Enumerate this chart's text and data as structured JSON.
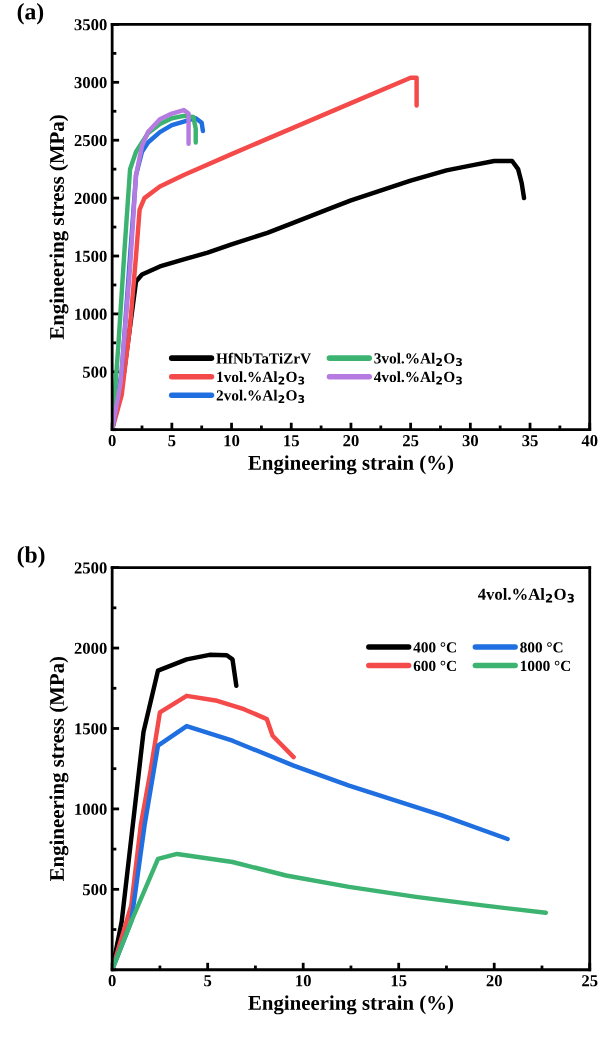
{
  "chart_data": [
    {
      "type": "line",
      "title": "(a)",
      "xlabel": "Engineering strain (%)",
      "ylabel": "Engineering stress (MPa)",
      "xlim": [
        0,
        40
      ],
      "ylim": [
        0,
        3500
      ],
      "xticks": [
        0,
        5,
        10,
        15,
        20,
        25,
        30,
        35,
        40
      ],
      "yticks": [
        500,
        1000,
        1500,
        2000,
        2500,
        3000,
        3500
      ],
      "legend": "bottom",
      "line_style": "solid",
      "marker": "none",
      "series": [
        {
          "name": "HfNbTaTiZrV",
          "color": "#000000",
          "x": [
            0,
            1,
            2,
            2.5,
            4,
            6,
            8,
            10,
            13,
            15,
            18,
            20,
            25,
            28,
            30,
            32,
            33.5,
            34,
            34.3,
            34.5
          ],
          "values": [
            0,
            500,
            1280,
            1340,
            1410,
            1470,
            1530,
            1600,
            1700,
            1780,
            1900,
            1980,
            2150,
            2240,
            2280,
            2320,
            2320,
            2250,
            2130,
            2000
          ]
        },
        {
          "name": "1vol.%Al$_{2}$O$_{3}$",
          "color": "#f44a4a",
          "x": [
            0,
            0.8,
            1.5,
            2,
            2.3,
            2.7,
            4,
            6,
            10,
            15,
            20,
            25,
            25.5,
            25.5
          ],
          "values": [
            0,
            300,
            900,
            1500,
            1900,
            2000,
            2100,
            2200,
            2380,
            2600,
            2820,
            3040,
            3040,
            2800
          ]
        },
        {
          "name": "2vol.%Al$_{2}$O$_{3}$",
          "color": "#1f6fe0",
          "x": [
            0,
            0.8,
            1.5,
            2,
            2.5,
            3,
            4,
            5,
            6,
            7,
            7.5,
            7.6
          ],
          "values": [
            0,
            500,
            1500,
            2200,
            2400,
            2480,
            2570,
            2630,
            2660,
            2690,
            2650,
            2580
          ]
        },
        {
          "name": "3vol.%Al$_{2}$O$_{3}$",
          "color": "#3cb371",
          "x": [
            0,
            0.5,
            1,
            1.5,
            2,
            3,
            4,
            5,
            6,
            6.8,
            7,
            7
          ],
          "values": [
            0,
            700,
            1500,
            2250,
            2400,
            2560,
            2640,
            2690,
            2710,
            2700,
            2600,
            2480
          ]
        },
        {
          "name": "4vol.%Al$_{2}$O$_{3}$",
          "color": "#b57be0",
          "x": [
            0,
            0.7,
            1.5,
            2,
            2.5,
            3,
            4,
            5,
            6,
            6.4,
            6.4
          ],
          "values": [
            0,
            400,
            1400,
            2200,
            2450,
            2570,
            2680,
            2730,
            2760,
            2730,
            2470
          ]
        }
      ]
    },
    {
      "type": "line",
      "title": "(b)",
      "xlabel": "Engineering strain (%)",
      "ylabel": "Engineering stress (MPa)",
      "xlim": [
        0,
        25
      ],
      "ylim": [
        0,
        2500
      ],
      "xticks": [
        0,
        5,
        10,
        15,
        20,
        25
      ],
      "yticks": [
        500,
        1000,
        1500,
        2000,
        2500
      ],
      "legend": "top right",
      "line_style": "solid",
      "marker": "none",
      "annotations": [
        "4vol.%Al$_{2}$O$_{3}$"
      ],
      "series": [
        {
          "name": "400 °C",
          "color": "#000000",
          "x": [
            0,
            0.5,
            1.64,
            2.4,
            3.9,
            5.1,
            6.0,
            6.3,
            6.5
          ],
          "values": [
            0,
            300,
            1478,
            1860,
            1930,
            1958,
            1955,
            1930,
            1766
          ]
        },
        {
          "name": "600 °C",
          "color": "#f44a4a",
          "x": [
            0,
            1,
            1.5,
            2.0,
            2.5,
            3.9,
            5.5,
            6.9,
            8.1,
            8.4,
            9.5
          ],
          "values": [
            0,
            400,
            900,
            1230,
            1600,
            1703,
            1672,
            1620,
            1558,
            1455,
            1322
          ]
        },
        {
          "name": "800 °C",
          "color": "#1f6fe0",
          "x": [
            0,
            1,
            1.7,
            2.4,
            3.9,
            6.3,
            9.5,
            12.4,
            17.3,
            20.7
          ],
          "values": [
            0,
            300,
            900,
            1393,
            1515,
            1424,
            1269,
            1145,
            958,
            813
          ]
        },
        {
          "name": "1000 °C",
          "color": "#3cb371",
          "x": [
            0,
            1,
            2.4,
            3.4,
            6.3,
            9.1,
            12.4,
            15.9,
            19.4,
            22.7
          ],
          "values": [
            0,
            300,
            689,
            720,
            670,
            586,
            515,
            453,
            400,
            354
          ]
        }
      ]
    }
  ]
}
